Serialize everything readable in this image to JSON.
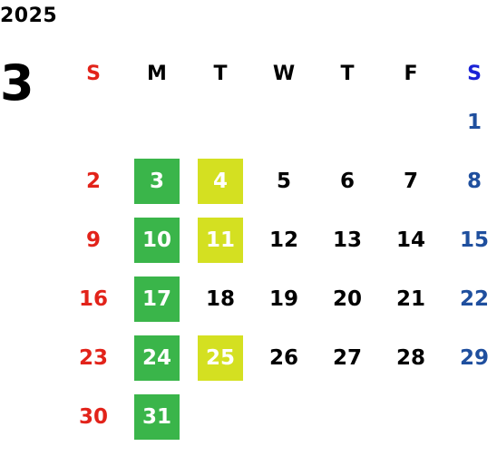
{
  "calendar": {
    "year": "2025",
    "month": "3",
    "weekdays": [
      "S",
      "M",
      "T",
      "W",
      "T",
      "F",
      "S"
    ],
    "first_weekday_index": 6,
    "days": [
      "1",
      "2",
      "3",
      "4",
      "5",
      "6",
      "7",
      "8",
      "9",
      "10",
      "11",
      "12",
      "13",
      "14",
      "15",
      "16",
      "17",
      "18",
      "19",
      "20",
      "21",
      "22",
      "23",
      "24",
      "25",
      "26",
      "27",
      "28",
      "29",
      "30",
      "31"
    ],
    "highlighted": {
      "green": [
        "3",
        "10",
        "17",
        "24",
        "31"
      ],
      "yellow": [
        "4",
        "11",
        "25"
      ]
    },
    "colors": {
      "sunday": "#e2231a",
      "saturday_header": "#1a22d6",
      "saturday": "#1f4f9e",
      "green_highlight": "#3ab54a",
      "yellow_highlight": "#d4e021"
    }
  }
}
